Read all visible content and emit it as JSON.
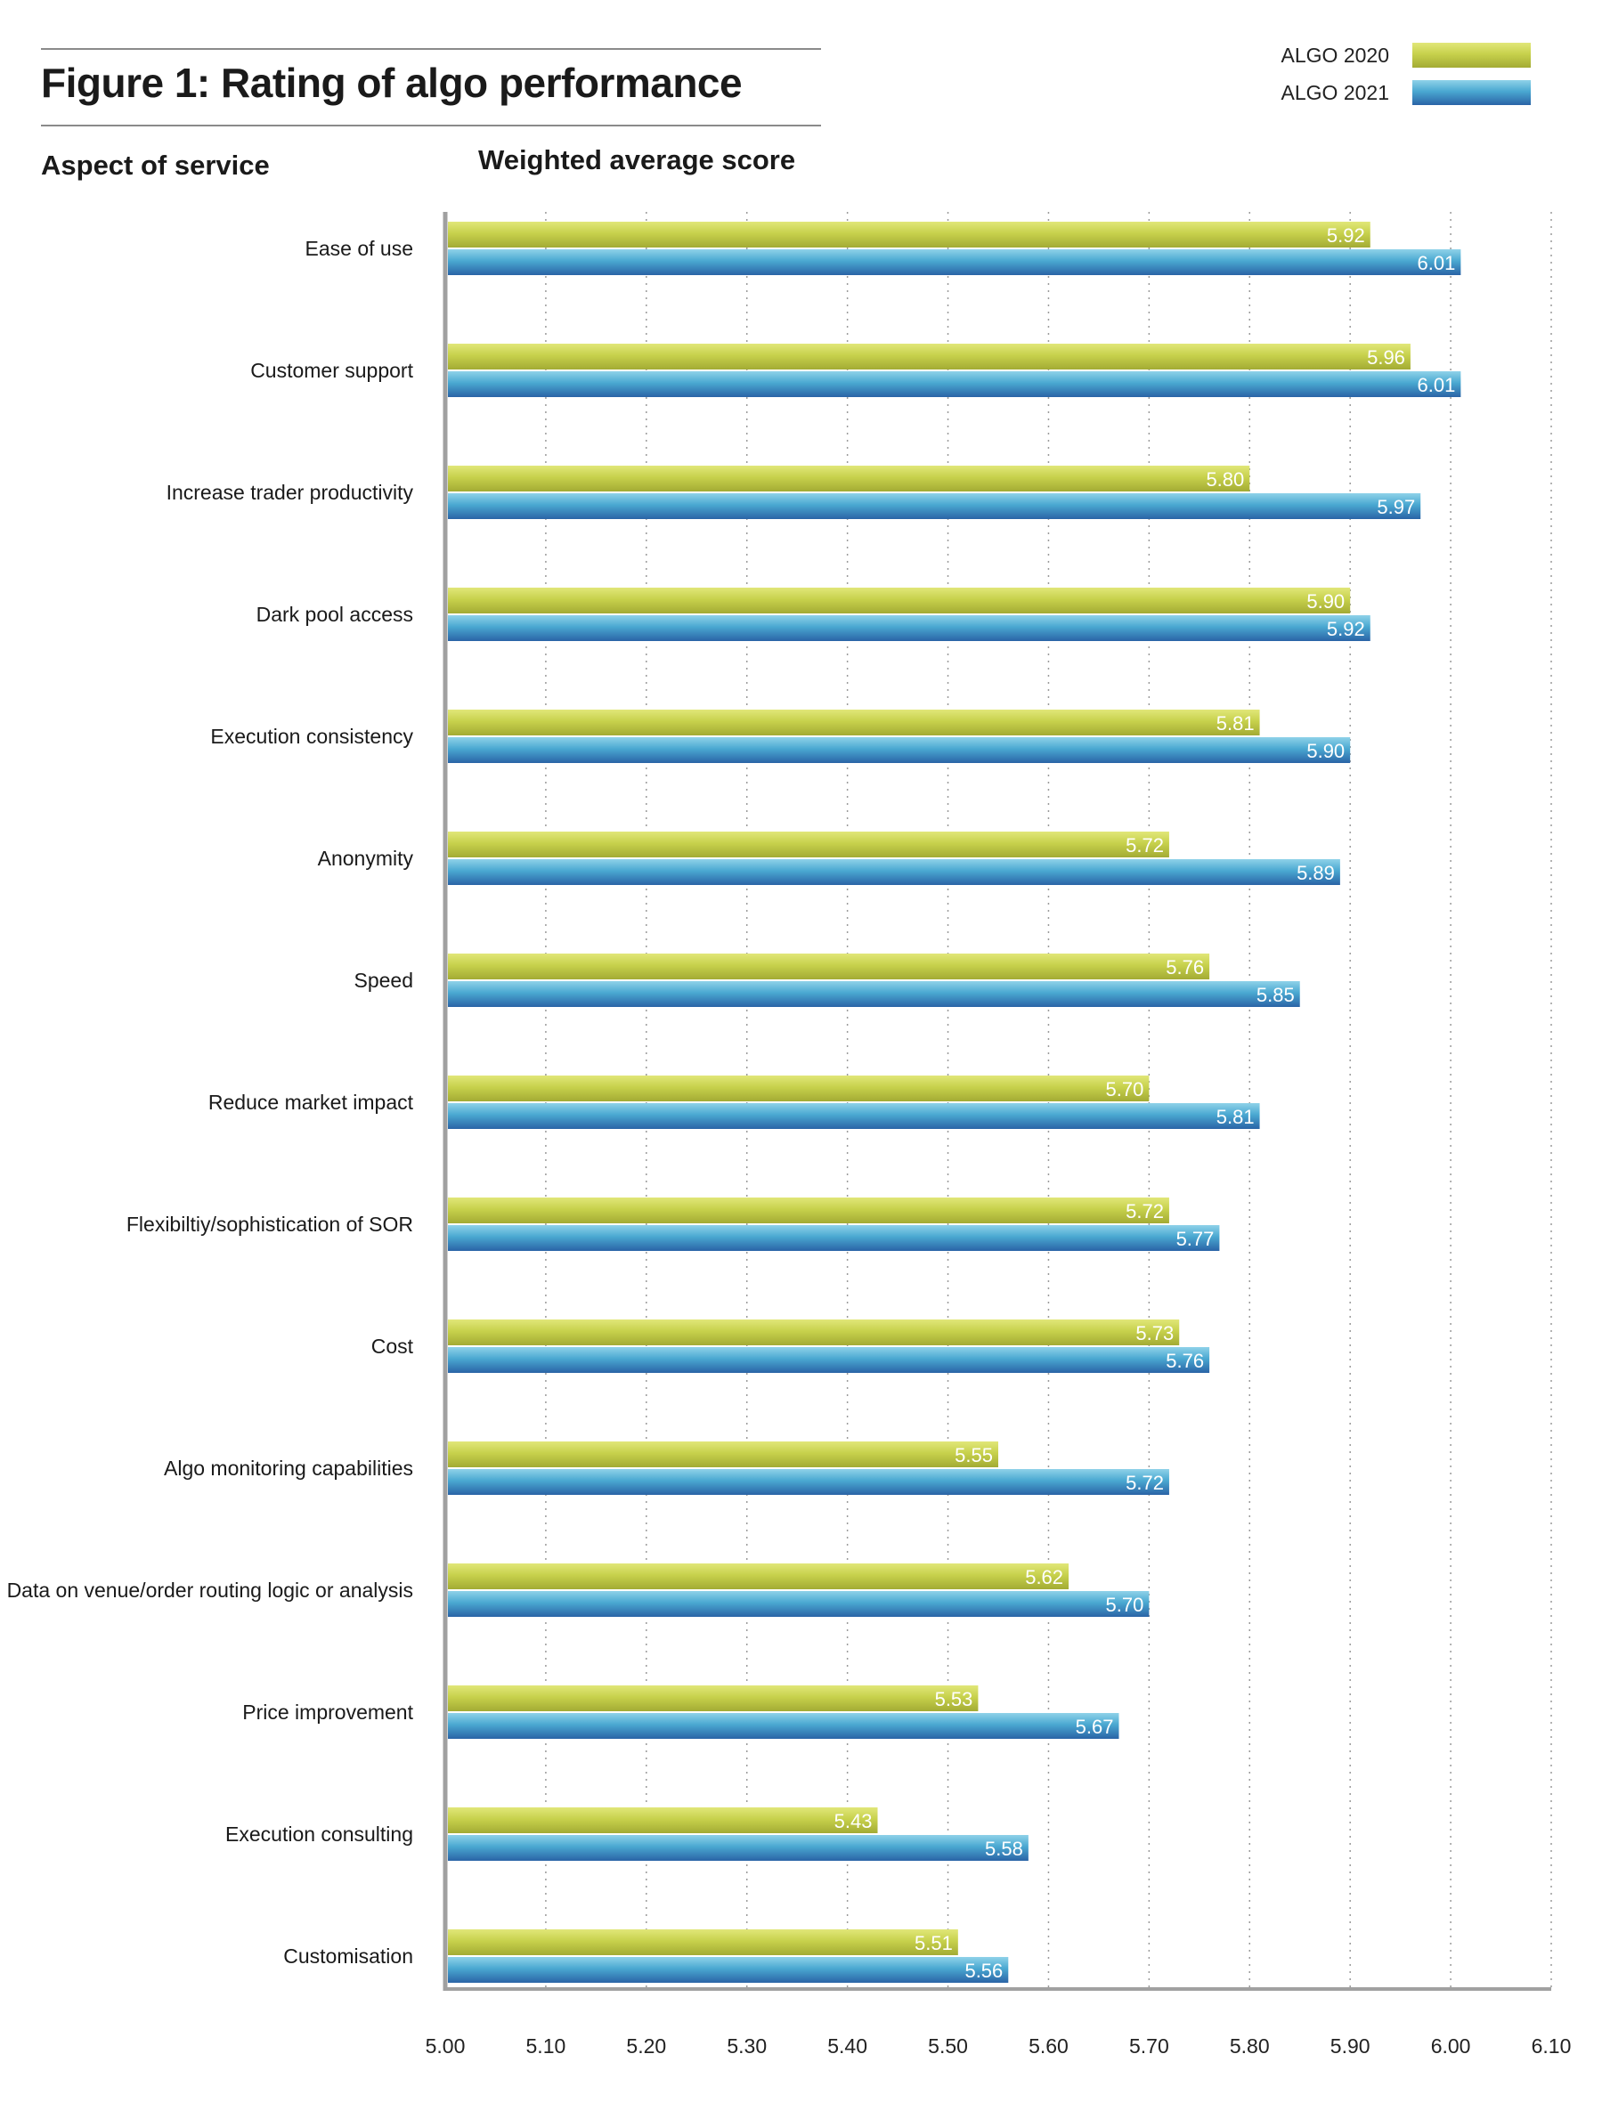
{
  "header": {
    "title": "Figure 1: Rating of algo performance",
    "left_heading": "Aspect of service",
    "right_heading": "Weighted average score"
  },
  "legend": [
    {
      "label": "ALGO 2020",
      "color": "#c7d14c"
    },
    {
      "label": "ALGO 2021",
      "color": "#3b8fc4"
    }
  ],
  "chart_data": {
    "type": "bar",
    "orientation": "horizontal",
    "xlim": [
      5.0,
      6.1
    ],
    "xticks": [
      "5.00",
      "5.10",
      "5.20",
      "5.30",
      "5.40",
      "5.50",
      "5.60",
      "5.70",
      "5.80",
      "5.90",
      "6.00",
      "6.10"
    ],
    "grid": true,
    "legend_position": "top-right",
    "categories": [
      "Ease of use",
      "Customer support",
      "Increase trader productivity",
      "Dark pool access",
      "Execution consistency",
      "Anonymity",
      "Speed",
      "Reduce market impact",
      "Flexibiltiy/sophistication of SOR",
      "Cost",
      "Algo monitoring capabilities",
      "Data on venue/order routing logic or analysis",
      "Price improvement",
      "Execution consulting",
      "Customisation"
    ],
    "series": [
      {
        "name": "ALGO 2020",
        "values": [
          5.92,
          5.96,
          5.8,
          5.9,
          5.81,
          5.72,
          5.76,
          5.7,
          5.72,
          5.73,
          5.55,
          5.62,
          5.53,
          5.43,
          5.51
        ]
      },
      {
        "name": "ALGO 2021",
        "values": [
          6.01,
          6.01,
          5.97,
          5.92,
          5.9,
          5.89,
          5.85,
          5.81,
          5.77,
          5.76,
          5.72,
          5.7,
          5.67,
          5.58,
          5.56
        ]
      }
    ]
  }
}
